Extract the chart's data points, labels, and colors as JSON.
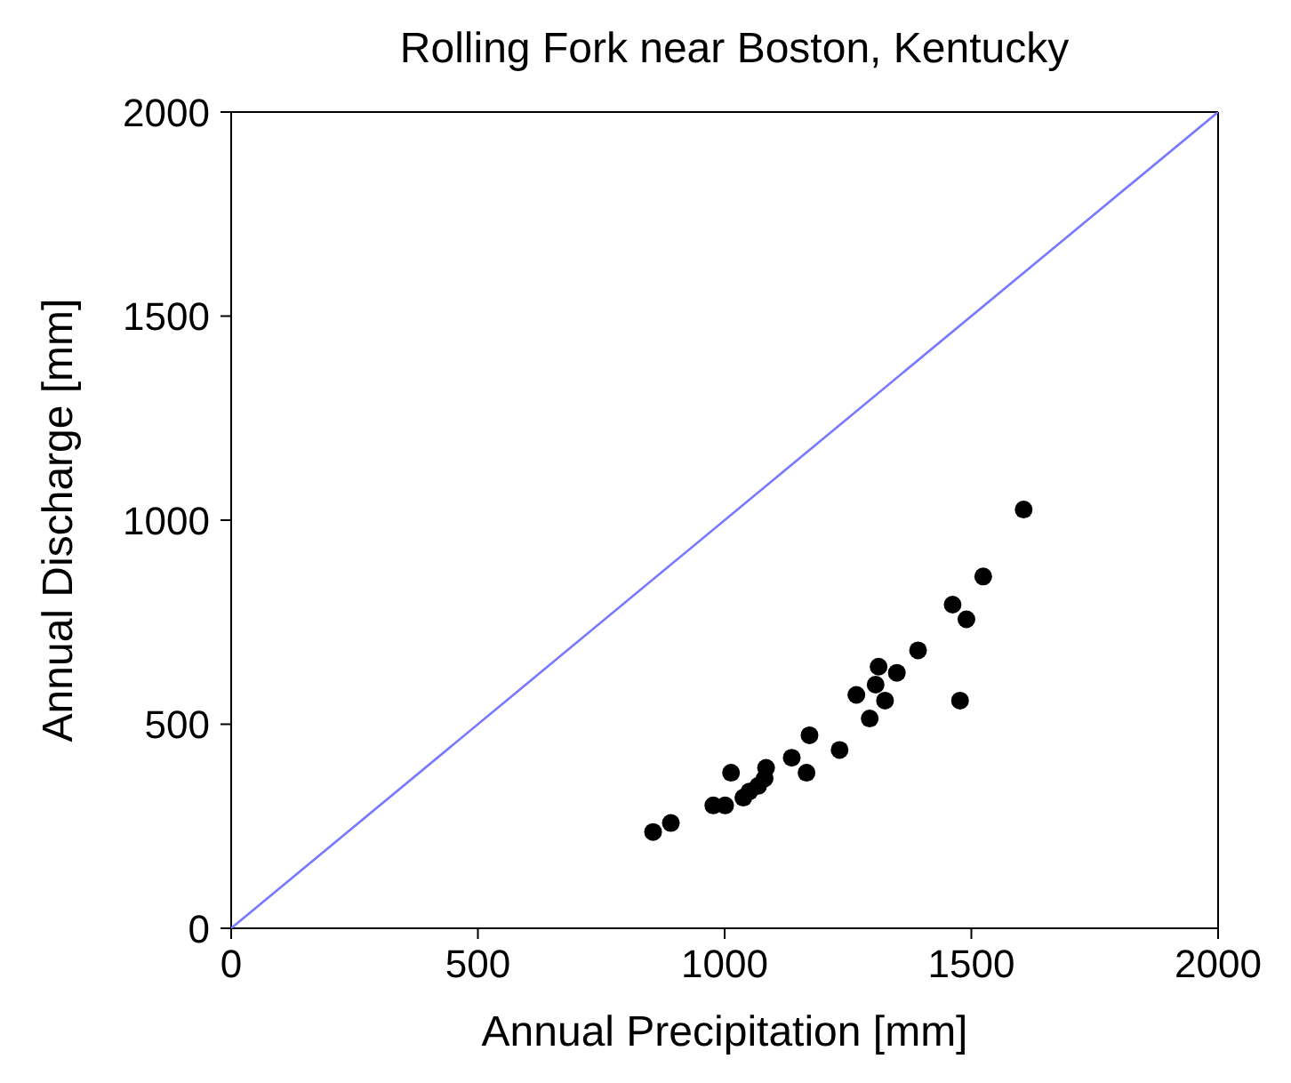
{
  "chart_data": {
    "type": "scatter",
    "title": "Rolling Fork near Boston, Kentucky",
    "xlabel": "Annual Precipitation [mm]",
    "ylabel": "Annual Discharge [mm]",
    "xlim": [
      0,
      2000
    ],
    "ylim": [
      0,
      2000
    ],
    "xticks": [
      0,
      500,
      1000,
      1500,
      2000
    ],
    "yticks": [
      0,
      500,
      1000,
      1500,
      2000
    ],
    "marker": "circle",
    "series": [
      {
        "type": "line",
        "color": "#7777ff",
        "marker": "none",
        "x": [
          0,
          2000
        ],
        "values": [
          0,
          2000
        ]
      },
      {
        "color": "#000000",
        "x": [
          855,
          891,
          977,
          1001,
          1013,
          1038,
          1050,
          1068,
          1084,
          1081,
          1136,
          1166,
          1172,
          1233,
          1267,
          1294,
          1306,
          1312,
          1325,
          1349,
          1392,
          1462,
          1490,
          1477,
          1524,
          1606
        ],
        "values": [
          236,
          258,
          301,
          301,
          381,
          320,
          335,
          349,
          393,
          367,
          418,
          381,
          473,
          437,
          572,
          514,
          597,
          641,
          558,
          626,
          681,
          793,
          757,
          558,
          862,
          1026
        ]
      }
    ]
  }
}
